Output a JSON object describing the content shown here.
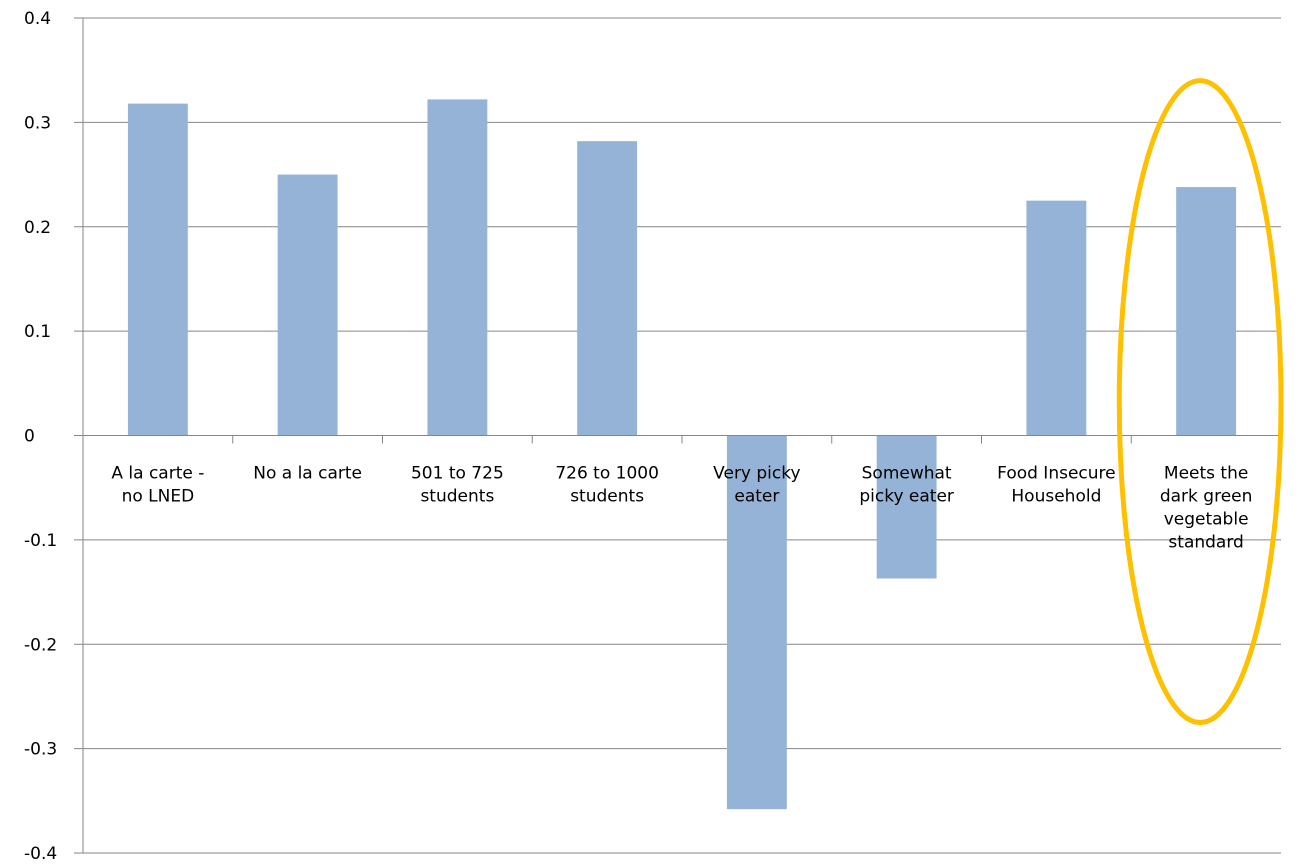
{
  "chart_data": {
    "type": "bar",
    "categories": [
      [
        "A la carte -",
        "no LNED"
      ],
      [
        "No a la carte"
      ],
      [
        "501 to 725",
        "students"
      ],
      [
        "726 to 1000",
        "students"
      ],
      [
        "Very picky",
        "eater"
      ],
      [
        "Somewhat",
        "picky eater"
      ],
      [
        "Food Insecure",
        "Household"
      ],
      [
        "Meets the",
        "dark green",
        "vegetable",
        "standard"
      ]
    ],
    "values": [
      0.318,
      0.25,
      0.322,
      0.282,
      -0.358,
      -0.137,
      0.225,
      0.238
    ],
    "ylim": [
      -0.4,
      0.4
    ],
    "yticks": [
      0.4,
      0.3,
      0.2,
      0.1,
      0,
      -0.1,
      -0.2,
      -0.3,
      -0.4
    ],
    "ytick_labels": [
      "0.4",
      "0.3",
      "0.2",
      "0.1",
      "0",
      "-0.1",
      "-0.2",
      "-0.3",
      "-0.4"
    ],
    "grid": true,
    "title": "",
    "xlabel": "",
    "ylabel": "",
    "bar_color": "#95B3D7",
    "highlight": {
      "category_index": 7,
      "shape": "ellipse",
      "color": "#FFC000"
    }
  }
}
